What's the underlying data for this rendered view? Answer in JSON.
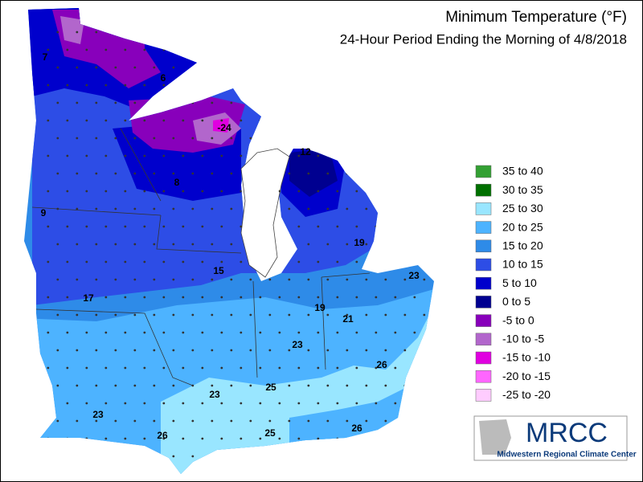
{
  "title": "Minimum Temperature (°F)",
  "subtitle": "24-Hour Period Ending the Morning of 4/8/2018",
  "legend": [
    {
      "label": "35 to 40",
      "color": "#33a033"
    },
    {
      "label": "30 to 35",
      "color": "#007000"
    },
    {
      "label": "25 to 30",
      "color": "#99e6ff"
    },
    {
      "label": "20 to 25",
      "color": "#4db3ff"
    },
    {
      "label": "15 to 20",
      "color": "#2e8be8"
    },
    {
      "label": "10 to 15",
      "color": "#2d4de6"
    },
    {
      "label": "5 to 10",
      "color": "#0000cc"
    },
    {
      "label": "0 to 5",
      "color": "#000090"
    },
    {
      "label": "-5 to 0",
      "color": "#8800bb"
    },
    {
      "label": "-10 to -5",
      "color": "#b266cc"
    },
    {
      "label": "-15 to -10",
      "color": "#e000e0"
    },
    {
      "label": "-20 to -15",
      "color": "#ff66ff"
    },
    {
      "label": "-25 to -20",
      "color": "#ffccff"
    }
  ],
  "stations": [
    7,
    6,
    -24,
    12,
    8,
    9,
    19,
    15,
    23,
    17,
    19,
    21,
    23,
    26,
    23,
    25,
    23,
    26,
    25,
    26
  ],
  "logo": {
    "name": "MRCC",
    "caption": "Midwestern Regional Climate Center"
  }
}
